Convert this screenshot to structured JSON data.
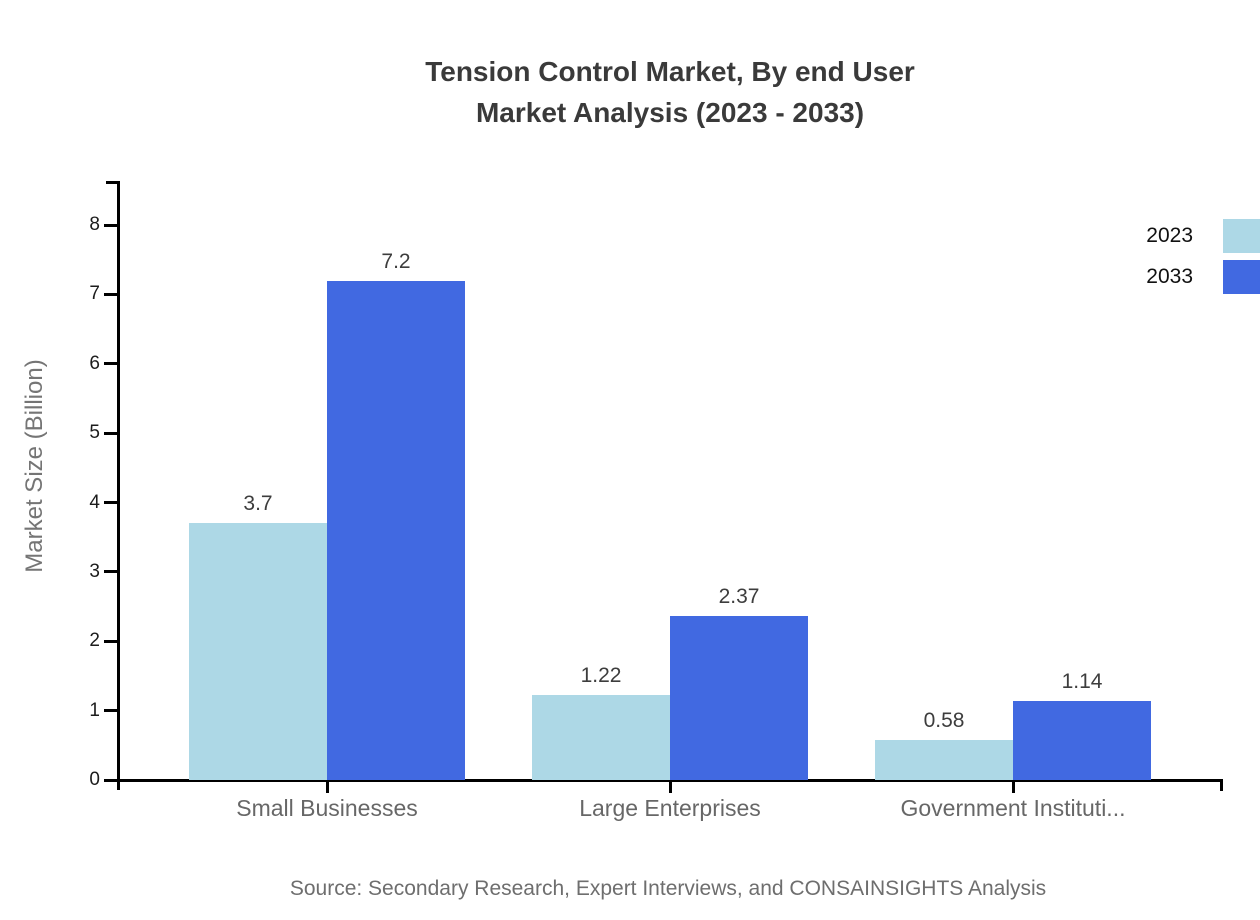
{
  "chart_data": {
    "type": "bar",
    "title_lines": [
      "Tension Control Market, By end User",
      "Market Analysis (2023 - 2033)"
    ],
    "categories": [
      "Small Businesses",
      "Large Enterprises",
      "Government Instituti..."
    ],
    "series": [
      {
        "name": "2023",
        "color": "#ADD8E6",
        "values": [
          3.7,
          1.22,
          0.58
        ]
      },
      {
        "name": "2033",
        "color": "#4169E1",
        "values": [
          7.2,
          2.37,
          1.14
        ]
      }
    ],
    "xlabel": "",
    "ylabel": "Market Size (Billion)",
    "yticks": [
      0,
      1,
      2,
      3,
      4,
      5,
      6,
      7,
      8
    ],
    "ylim": [
      0,
      8.6
    ],
    "grid": false,
    "legend_position": "top-right",
    "source": "Source: Secondary Research, Expert Interviews, and CONSAINSIGHTS Analysis"
  }
}
